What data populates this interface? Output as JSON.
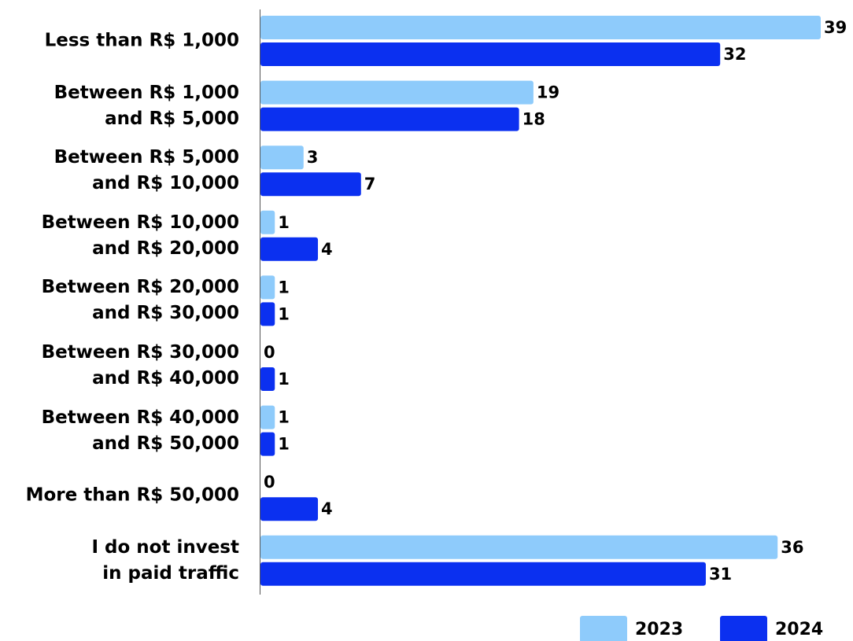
{
  "chart_data": {
    "type": "bar",
    "orientation": "horizontal",
    "categories": [
      "Less than R$ 1,000",
      "Between R$ 1,000\nand R$ 5,000",
      "Between R$ 5,000\nand R$ 10,000",
      "Between R$ 10,000\nand R$ 20,000",
      "Between R$ 20,000\nand R$ 30,000",
      "Between R$ 30,000\nand R$ 40,000",
      "Between R$ 40,000\nand R$ 50,000",
      "More than R$ 50,000",
      "I do not invest\nin paid traffic"
    ],
    "series": [
      {
        "name": "2023",
        "color": "#8ecbfb",
        "values": [
          39,
          19,
          3,
          1,
          1,
          0,
          1,
          0,
          36
        ]
      },
      {
        "name": "2024",
        "color": "#0b30f0",
        "values": [
          32,
          18,
          7,
          4,
          1,
          1,
          1,
          4,
          31
        ]
      }
    ],
    "legend": "bottom-right"
  }
}
